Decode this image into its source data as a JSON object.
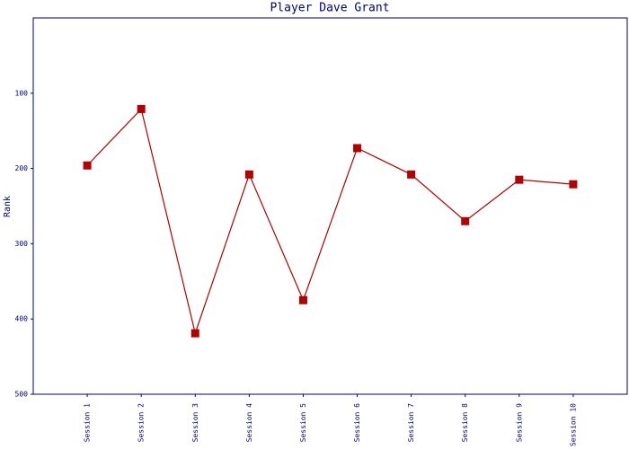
{
  "chart_data": {
    "type": "line",
    "title": "Player Dave Grant",
    "y_label": "Rank",
    "categories": [
      "Session 1",
      "Session 2",
      "Session 3",
      "Session 4",
      "Session 5",
      "Session 6",
      "Session 7",
      "Session 8",
      "Session 9",
      "Session 10"
    ],
    "series": [
      {
        "name": "Rank",
        "color": "#b30000",
        "values": [
          196,
          121,
          419,
          208,
          375,
          173,
          208,
          270,
          215,
          221
        ]
      }
    ],
    "ylim": [
      0,
      500
    ],
    "yticks": [
      100,
      200,
      300,
      400,
      500
    ],
    "y_inverted": true,
    "grid": false
  }
}
